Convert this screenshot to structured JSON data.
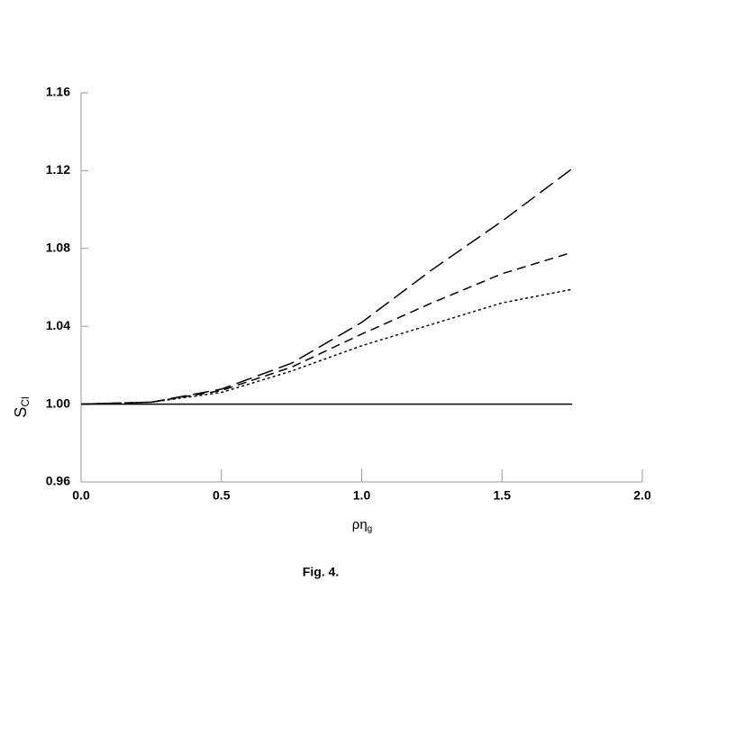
{
  "chart_data": {
    "type": "line",
    "caption": "Fig. 4.",
    "xlabel": "ρη",
    "xlabel_sub": "g",
    "ylabel": "S",
    "ylabel_sub": "Cl",
    "x": [
      0,
      0.25,
      0.5,
      0.75,
      1.0,
      1.25,
      1.5,
      1.75
    ],
    "series": [
      {
        "color": "#000000",
        "dash": "solid",
        "values": [
          1.0,
          1.0,
          1.0,
          1.0,
          1.0,
          1.0,
          1.0,
          1.0
        ]
      },
      {
        "color": "#000000",
        "dash": "long",
        "values": [
          1.0,
          1.001,
          1.0077,
          1.021,
          1.042,
          1.069,
          1.094,
          1.121
        ]
      },
      {
        "color": "#000000",
        "dash": "medium",
        "values": [
          1.0,
          1.001,
          1.007,
          1.019,
          1.036,
          1.052,
          1.067,
          1.078
        ]
      },
      {
        "color": "#000000",
        "dash": "dotted",
        "values": [
          1.0,
          1.001,
          1.006,
          1.017,
          1.03,
          1.041,
          1.052,
          1.059
        ]
      }
    ],
    "xlim": [
      0,
      2.0
    ],
    "xticks": [
      {
        "value": 0,
        "label": "0.0"
      },
      0.5,
      {
        "value": 1,
        "label": "1.0"
      },
      1.5,
      {
        "value": 2,
        "label": "2.0"
      }
    ],
    "ylim": [
      0.96,
      1.16
    ],
    "yticks": [
      0.96,
      {
        "value": 1,
        "label": "1.00"
      },
      1.04,
      1.08,
      1.12,
      1.16
    ],
    "grid": false
  }
}
